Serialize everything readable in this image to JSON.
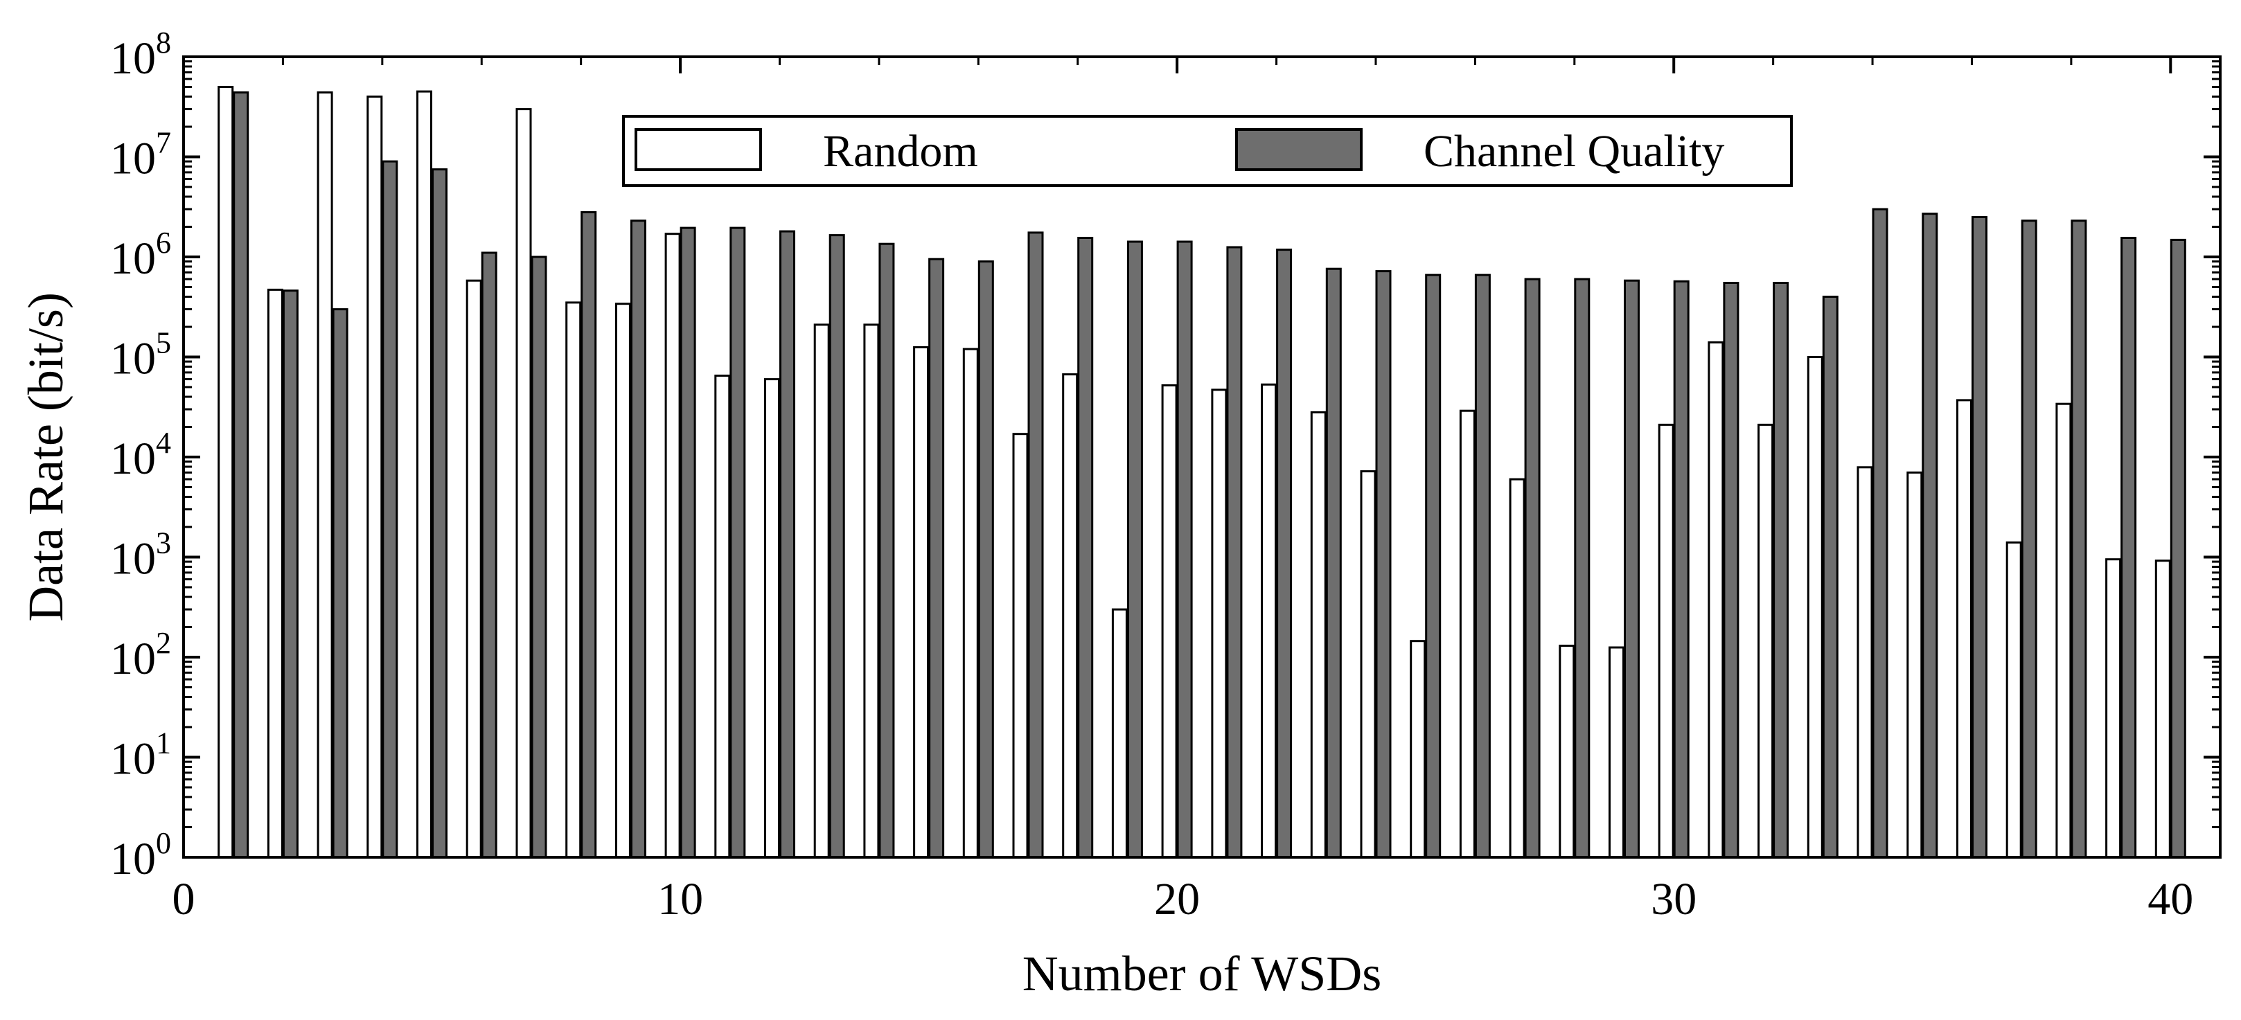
{
  "chart_data": {
    "type": "bar",
    "title": "",
    "xlabel": "Number of WSDs",
    "ylabel": "Data Rate (bit/s)",
    "xlim": [
      0,
      41
    ],
    "ylim": [
      1,
      100000000
    ],
    "yscale": "log",
    "xticks": [
      "0",
      "10",
      "20",
      "30",
      "40"
    ],
    "yticks": [
      {
        "base": "10",
        "exp": "0"
      },
      {
        "base": "10",
        "exp": "1"
      },
      {
        "base": "10",
        "exp": "2"
      },
      {
        "base": "10",
        "exp": "3"
      },
      {
        "base": "10",
        "exp": "4"
      },
      {
        "base": "10",
        "exp": "5"
      },
      {
        "base": "10",
        "exp": "6"
      },
      {
        "base": "10",
        "exp": "7"
      },
      {
        "base": "10",
        "exp": "8"
      }
    ],
    "legend_position": "top-center",
    "grid": false,
    "x": [
      1,
      2,
      3,
      4,
      5,
      6,
      7,
      8,
      9,
      10,
      11,
      12,
      13,
      14,
      15,
      16,
      17,
      18,
      19,
      20,
      21,
      22,
      23,
      24,
      25,
      26,
      27,
      28,
      29,
      30,
      31,
      32,
      33,
      34,
      35,
      36,
      37,
      38,
      39,
      40
    ],
    "series": [
      {
        "name": "Random",
        "color": "#ffffff",
        "values": [
          50000000,
          470000,
          44000000,
          40000000,
          45000000,
          580000,
          30000000,
          350000,
          340000,
          1700000,
          65000,
          60000,
          210000,
          210000,
          125000,
          120000,
          17000,
          67000,
          300,
          52000,
          47000,
          53000,
          28000,
          7200,
          145,
          29000,
          6000,
          130,
          125,
          21000,
          140000,
          21000,
          100000,
          7900,
          7000,
          37000,
          1400,
          34000,
          950,
          920
        ]
      },
      {
        "name": "Channel Quality",
        "color": "#6e6e6e",
        "values": [
          44000000,
          460000,
          300000,
          9000000,
          7500000,
          1100000,
          1000000,
          2800000,
          2300000,
          1950000,
          1950000,
          1800000,
          1650000,
          1350000,
          950000,
          900000,
          1750000,
          1550000,
          1420000,
          1420000,
          1250000,
          1180000,
          760000,
          720000,
          660000,
          660000,
          600000,
          600000,
          580000,
          570000,
          550000,
          550000,
          400000,
          3000000,
          2700000,
          2500000,
          2300000,
          2300000,
          1550000,
          1480000
        ]
      }
    ]
  }
}
